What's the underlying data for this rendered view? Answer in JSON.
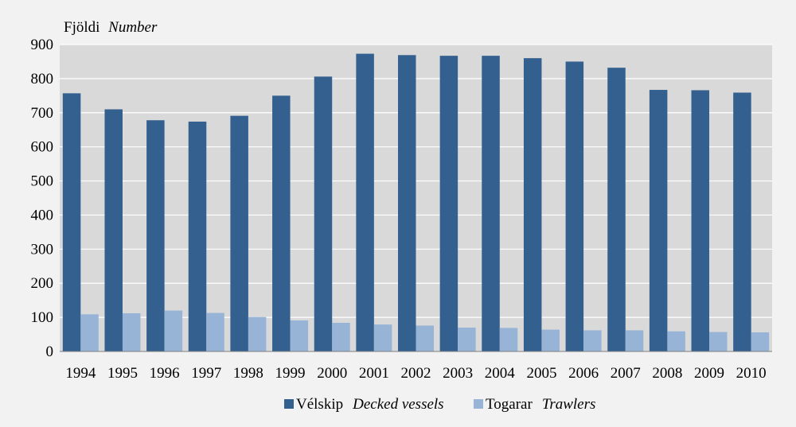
{
  "chart_data": {
    "type": "bar",
    "ylabel": "Fjöldi",
    "ylabel_en": "Number",
    "categories": [
      "1994",
      "1995",
      "1996",
      "1997",
      "1998",
      "1999",
      "2000",
      "2001",
      "2002",
      "2003",
      "2004",
      "2005",
      "2006",
      "2007",
      "2008",
      "2009",
      "2010"
    ],
    "series": [
      {
        "name": "Vélskip",
        "name_en": "Decked vessels",
        "color": "#34608f",
        "values": [
          757,
          710,
          678,
          674,
          691,
          750,
          806,
          873,
          869,
          867,
          867,
          860,
          850,
          832,
          767,
          766,
          759
        ]
      },
      {
        "name": "Togarar",
        "name_en": "Trawlers",
        "color": "#97b4d6",
        "values": [
          109,
          112,
          120,
          113,
          101,
          91,
          84,
          79,
          76,
          70,
          69,
          64,
          62,
          62,
          59,
          57,
          56
        ]
      }
    ],
    "ylim": [
      0,
      900
    ],
    "yticks": [
      0,
      100,
      200,
      300,
      400,
      500,
      600,
      700,
      800,
      900
    ],
    "grid": true,
    "legend_position": "bottom",
    "plot_background": "#d9d9d9"
  }
}
